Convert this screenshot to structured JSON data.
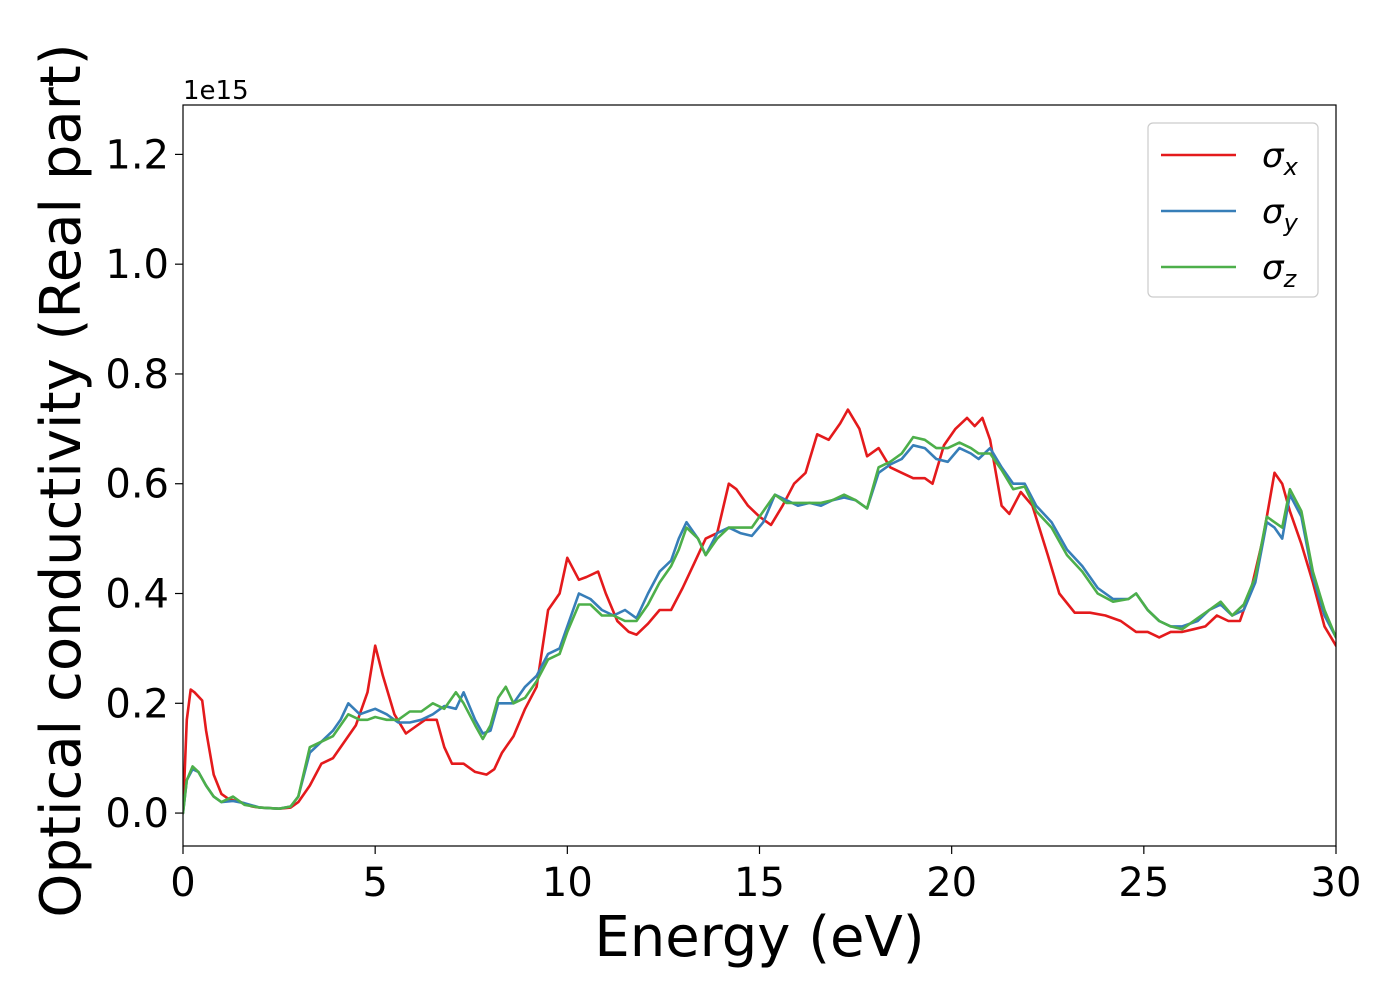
{
  "chart_data": {
    "type": "line",
    "title": "",
    "xlabel": "Energy (eV)",
    "ylabel": "Optical conductivity (Real part)",
    "y_offset_text": "1e15",
    "xlim": [
      0,
      30
    ],
    "ylim": [
      -0.06,
      1.29
    ],
    "x_ticks": [
      0,
      5,
      10,
      15,
      20,
      25,
      30
    ],
    "x_tick_labels": [
      "0",
      "5",
      "10",
      "15",
      "20",
      "25",
      "30"
    ],
    "y_ticks": [
      0.0,
      0.2,
      0.4,
      0.6,
      0.8,
      1.0,
      1.2
    ],
    "y_tick_labels": [
      "0.0",
      "0.2",
      "0.4",
      "0.6",
      "0.8",
      "1.0",
      "1.2"
    ],
    "grid": false,
    "legend_position": "top-right",
    "series": [
      {
        "name": "σx",
        "name_base": "σ",
        "name_sub": "x",
        "color": "#e41a1c",
        "x": [
          0,
          0.1,
          0.2,
          0.3,
          0.5,
          0.6,
          0.8,
          1.0,
          1.2,
          1.5,
          1.8,
          2.0,
          2.5,
          2.8,
          3.0,
          3.3,
          3.6,
          3.9,
          4.2,
          4.5,
          4.8,
          5.0,
          5.2,
          5.5,
          5.8,
          6.0,
          6.3,
          6.6,
          6.8,
          7.0,
          7.3,
          7.6,
          7.9,
          8.1,
          8.3,
          8.6,
          8.9,
          9.2,
          9.5,
          9.8,
          10.0,
          10.3,
          10.5,
          10.8,
          11.0,
          11.3,
          11.6,
          11.8,
          12.1,
          12.4,
          12.7,
          13.0,
          13.3,
          13.6,
          13.9,
          14.2,
          14.4,
          14.7,
          15.0,
          15.3,
          15.6,
          15.9,
          16.2,
          16.5,
          16.8,
          17.1,
          17.3,
          17.6,
          17.8,
          18.1,
          18.4,
          18.7,
          19.0,
          19.3,
          19.5,
          19.8,
          20.1,
          20.4,
          20.6,
          20.8,
          21.0,
          21.3,
          21.5,
          21.8,
          22.1,
          22.5,
          22.8,
          23.2,
          23.6,
          24.0,
          24.4,
          24.8,
          25.1,
          25.4,
          25.7,
          26.0,
          26.3,
          26.6,
          26.9,
          27.2,
          27.5,
          27.8,
          28.1,
          28.4,
          28.6,
          28.8,
          29.1,
          29.4,
          29.7,
          30.0
        ],
        "y": [
          0.0,
          0.17,
          0.225,
          0.22,
          0.205,
          0.15,
          0.07,
          0.035,
          0.025,
          0.02,
          0.012,
          0.01,
          0.008,
          0.01,
          0.02,
          0.05,
          0.09,
          0.1,
          0.13,
          0.16,
          0.22,
          0.305,
          0.25,
          0.18,
          0.145,
          0.155,
          0.17,
          0.17,
          0.12,
          0.09,
          0.09,
          0.075,
          0.07,
          0.08,
          0.11,
          0.14,
          0.19,
          0.23,
          0.37,
          0.4,
          0.465,
          0.425,
          0.43,
          0.44,
          0.4,
          0.35,
          0.33,
          0.325,
          0.345,
          0.37,
          0.37,
          0.41,
          0.455,
          0.5,
          0.51,
          0.6,
          0.59,
          0.56,
          0.54,
          0.525,
          0.56,
          0.6,
          0.62,
          0.69,
          0.68,
          0.71,
          0.735,
          0.7,
          0.65,
          0.665,
          0.63,
          0.62,
          0.61,
          0.61,
          0.6,
          0.67,
          0.7,
          0.72,
          0.705,
          0.72,
          0.68,
          0.56,
          0.545,
          0.585,
          0.56,
          0.47,
          0.4,
          0.365,
          0.365,
          0.36,
          0.35,
          0.33,
          0.33,
          0.32,
          0.33,
          0.33,
          0.335,
          0.34,
          0.36,
          0.35,
          0.35,
          0.41,
          0.5,
          0.62,
          0.6,
          0.55,
          0.49,
          0.42,
          0.34,
          0.305
        ]
      },
      {
        "name": "σy",
        "name_base": "σ",
        "name_sub": "y",
        "color": "#377eb8",
        "x": [
          0,
          0.1,
          0.25,
          0.4,
          0.6,
          0.8,
          1.0,
          1.3,
          1.6,
          2.0,
          2.5,
          2.8,
          3.0,
          3.3,
          3.6,
          3.9,
          4.1,
          4.3,
          4.6,
          4.8,
          5.0,
          5.3,
          5.6,
          5.9,
          6.2,
          6.5,
          6.8,
          7.1,
          7.3,
          7.6,
          7.8,
          8.0,
          8.2,
          8.4,
          8.6,
          8.9,
          9.2,
          9.5,
          9.8,
          10.0,
          10.3,
          10.6,
          10.9,
          11.2,
          11.5,
          11.8,
          12.1,
          12.4,
          12.7,
          12.9,
          13.1,
          13.4,
          13.6,
          13.9,
          14.2,
          14.5,
          14.8,
          15.1,
          15.4,
          15.7,
          16.0,
          16.3,
          16.6,
          16.9,
          17.2,
          17.5,
          17.8,
          18.1,
          18.4,
          18.7,
          19.0,
          19.3,
          19.6,
          19.9,
          20.2,
          20.5,
          20.7,
          21.0,
          21.3,
          21.6,
          21.9,
          22.2,
          22.6,
          23.0,
          23.4,
          23.8,
          24.2,
          24.6,
          24.8,
          25.1,
          25.4,
          25.7,
          26.0,
          26.4,
          26.7,
          27.0,
          27.3,
          27.6,
          27.9,
          28.2,
          28.4,
          28.6,
          28.8,
          29.1,
          29.4,
          29.7,
          30.0
        ],
        "y": [
          0.0,
          0.06,
          0.08,
          0.075,
          0.05,
          0.03,
          0.02,
          0.022,
          0.018,
          0.01,
          0.008,
          0.012,
          0.03,
          0.11,
          0.13,
          0.15,
          0.17,
          0.2,
          0.18,
          0.185,
          0.19,
          0.18,
          0.165,
          0.165,
          0.17,
          0.18,
          0.195,
          0.19,
          0.22,
          0.17,
          0.145,
          0.15,
          0.2,
          0.2,
          0.2,
          0.23,
          0.25,
          0.29,
          0.3,
          0.34,
          0.4,
          0.39,
          0.37,
          0.36,
          0.37,
          0.355,
          0.4,
          0.44,
          0.46,
          0.5,
          0.53,
          0.5,
          0.47,
          0.51,
          0.52,
          0.51,
          0.505,
          0.53,
          0.58,
          0.57,
          0.56,
          0.565,
          0.56,
          0.57,
          0.575,
          0.57,
          0.555,
          0.62,
          0.635,
          0.645,
          0.67,
          0.665,
          0.645,
          0.64,
          0.665,
          0.655,
          0.645,
          0.665,
          0.63,
          0.6,
          0.6,
          0.56,
          0.53,
          0.48,
          0.45,
          0.41,
          0.39,
          0.39,
          0.4,
          0.37,
          0.35,
          0.34,
          0.34,
          0.35,
          0.37,
          0.38,
          0.36,
          0.37,
          0.42,
          0.53,
          0.52,
          0.5,
          0.58,
          0.54,
          0.43,
          0.36,
          0.32
        ]
      },
      {
        "name": "σz",
        "name_base": "σ",
        "name_sub": "z",
        "color": "#4daf4a",
        "x": [
          0,
          0.1,
          0.25,
          0.4,
          0.6,
          0.8,
          1.0,
          1.3,
          1.6,
          2.0,
          2.5,
          2.8,
          3.0,
          3.3,
          3.6,
          3.9,
          4.1,
          4.3,
          4.6,
          4.8,
          5.0,
          5.3,
          5.6,
          5.9,
          6.2,
          6.5,
          6.8,
          7.1,
          7.3,
          7.6,
          7.8,
          8.0,
          8.2,
          8.4,
          8.6,
          8.9,
          9.2,
          9.5,
          9.8,
          10.0,
          10.3,
          10.6,
          10.9,
          11.2,
          11.5,
          11.8,
          12.1,
          12.4,
          12.7,
          12.9,
          13.1,
          13.4,
          13.6,
          13.9,
          14.2,
          14.5,
          14.8,
          15.1,
          15.4,
          15.7,
          16.0,
          16.3,
          16.6,
          16.9,
          17.2,
          17.5,
          17.8,
          18.1,
          18.4,
          18.7,
          19.0,
          19.3,
          19.6,
          19.9,
          20.2,
          20.5,
          20.7,
          21.0,
          21.3,
          21.6,
          21.9,
          22.2,
          22.6,
          23.0,
          23.4,
          23.8,
          24.2,
          24.6,
          24.8,
          25.1,
          25.4,
          25.7,
          26.0,
          26.4,
          26.7,
          27.0,
          27.3,
          27.6,
          27.9,
          28.2,
          28.4,
          28.6,
          28.8,
          29.1,
          29.4,
          29.7,
          30.0
        ],
        "y": [
          0.0,
          0.06,
          0.085,
          0.075,
          0.05,
          0.03,
          0.02,
          0.03,
          0.015,
          0.01,
          0.008,
          0.012,
          0.03,
          0.12,
          0.13,
          0.14,
          0.16,
          0.18,
          0.17,
          0.17,
          0.175,
          0.17,
          0.17,
          0.185,
          0.185,
          0.2,
          0.19,
          0.22,
          0.2,
          0.16,
          0.135,
          0.16,
          0.21,
          0.23,
          0.2,
          0.21,
          0.24,
          0.28,
          0.29,
          0.33,
          0.38,
          0.38,
          0.36,
          0.36,
          0.35,
          0.35,
          0.38,
          0.42,
          0.45,
          0.48,
          0.52,
          0.5,
          0.47,
          0.5,
          0.52,
          0.52,
          0.52,
          0.55,
          0.58,
          0.565,
          0.565,
          0.565,
          0.565,
          0.57,
          0.58,
          0.57,
          0.555,
          0.63,
          0.64,
          0.655,
          0.685,
          0.68,
          0.665,
          0.665,
          0.675,
          0.665,
          0.655,
          0.655,
          0.625,
          0.59,
          0.595,
          0.55,
          0.52,
          0.47,
          0.44,
          0.4,
          0.385,
          0.39,
          0.4,
          0.37,
          0.35,
          0.34,
          0.335,
          0.355,
          0.37,
          0.385,
          0.36,
          0.38,
          0.43,
          0.54,
          0.53,
          0.52,
          0.59,
          0.55,
          0.44,
          0.37,
          0.32
        ]
      }
    ]
  }
}
